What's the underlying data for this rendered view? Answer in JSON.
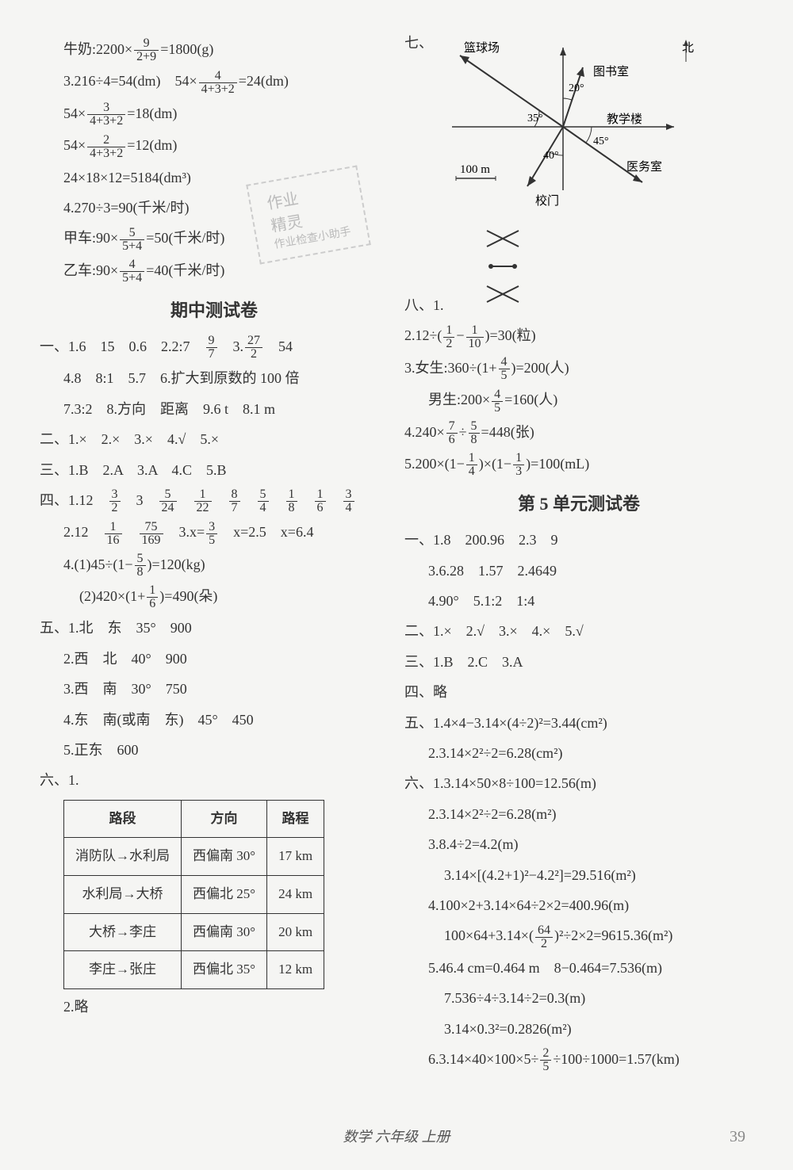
{
  "left": {
    "l1_a": "牛奶:2200×",
    "l1_f": {
      "n": "9",
      "d": "2+9"
    },
    "l1_b": "=1800(g)",
    "l2_a": "3.216÷4=54(dm)　54×",
    "l2_f": {
      "n": "4",
      "d": "4+3+2"
    },
    "l2_b": "=24(dm)",
    "l3_a": "54×",
    "l3_f": {
      "n": "3",
      "d": "4+3+2"
    },
    "l3_b": "=18(dm)",
    "l4_a": "54×",
    "l4_f": {
      "n": "2",
      "d": "4+3+2"
    },
    "l4_b": "=12(dm)",
    "l5": "24×18×12=5184(dm³)",
    "l6": "4.270÷3=90(千米/时)",
    "l7_a": "甲车:90×",
    "l7_f": {
      "n": "5",
      "d": "5+4"
    },
    "l7_b": "=50(千米/时)",
    "l8_a": "乙车:90×",
    "l8_f": {
      "n": "4",
      "d": "5+4"
    },
    "l8_b": "=40(千米/时)",
    "heading1": "期中测试卷",
    "s1_1a": "一、1.6　15　0.6　2.2:7　",
    "s1_1f1": {
      "n": "9",
      "d": "7"
    },
    "s1_1m": "　3.",
    "s1_1f2": {
      "n": "27",
      "d": "2"
    },
    "s1_1b": "　54",
    "s1_2": "4.8　8:1　5.7　6.扩大到原数的 100 倍",
    "s1_3": "7.3:2　8.方向　距离　9.6 t　8.1 m",
    "s2": "二、1.×　2.×　3.×　4.√　5.×",
    "s3": "三、1.B　2.A　3.A　4.C　5.B",
    "s4_1a": "四、1.12　",
    "s4_fr": [
      {
        "n": "3",
        "d": "2"
      },
      {
        "t": "　3　"
      },
      {
        "n": "5",
        "d": "24"
      },
      {
        "t": "　"
      },
      {
        "n": "1",
        "d": "22"
      },
      {
        "t": "　"
      },
      {
        "n": "8",
        "d": "7"
      },
      {
        "t": "　"
      },
      {
        "n": "5",
        "d": "4"
      },
      {
        "t": "　"
      },
      {
        "n": "1",
        "d": "8"
      },
      {
        "t": "　"
      },
      {
        "n": "1",
        "d": "6"
      },
      {
        "t": "　"
      },
      {
        "n": "3",
        "d": "4"
      }
    ],
    "s4_2a": "2.12　",
    "s4_2fr": [
      {
        "n": "1",
        "d": "16"
      },
      {
        "t": "　"
      },
      {
        "n": "75",
        "d": "169"
      },
      {
        "t": "　3.x="
      },
      {
        "n": "3",
        "d": "5"
      },
      {
        "t": "　x=2.5　x=6.4"
      }
    ],
    "s4_3a": "4.(1)45÷(1−",
    "s4_3f": {
      "n": "5",
      "d": "8"
    },
    "s4_3b": ")=120(kg)",
    "s4_4a": "(2)420×(1+",
    "s4_4f": {
      "n": "1",
      "d": "6"
    },
    "s4_4b": ")=490(朵)",
    "s5_1": "五、1.北　东　35°　900",
    "s5_2": "2.西　北　40°　900",
    "s5_3": "3.西　南　30°　750",
    "s5_4": "4.东　南(或南　东)　45°　450",
    "s5_5": "5.正东　600",
    "s6_label": "六、1.",
    "table": {
      "headers": [
        "路段",
        "方向",
        "路程"
      ],
      "rows": [
        [
          "消防队→水利局",
          "西偏南 30°",
          "17 km"
        ],
        [
          "水利局→大桥",
          "西偏北 25°",
          "24 km"
        ],
        [
          "大桥→李庄",
          "西偏南 30°",
          "20 km"
        ],
        [
          "李庄→张庄",
          "西偏北 35°",
          "12 km"
        ]
      ]
    },
    "s6_2": "2.略",
    "watermark1": "作业",
    "watermark2": "精灵",
    "watermark3": "作业检查小助手"
  },
  "right": {
    "s7_label": "七、",
    "compass": {
      "basketball": "篮球场",
      "north": "北",
      "library": "图书室",
      "teaching": "教学楼",
      "medical": "医务室",
      "gate": "校门",
      "scale": "100 m",
      "a20": "20°",
      "a35": "35°",
      "a45": "45°",
      "a40": "40°"
    },
    "s8_label": "八、1.",
    "r2_a": "2.12÷(",
    "r2_f1": {
      "n": "1",
      "d": "2"
    },
    "r2_m": "−",
    "r2_f2": {
      "n": "1",
      "d": "10"
    },
    "r2_b": ")=30(粒)",
    "r3_a": "3.女生:360÷(1+",
    "r3_f": {
      "n": "4",
      "d": "5"
    },
    "r3_b": ")=200(人)",
    "r4_a": "男生:200×",
    "r4_f": {
      "n": "4",
      "d": "5"
    },
    "r4_b": "=160(人)",
    "r5_a": "4.240×",
    "r5_f1": {
      "n": "7",
      "d": "6"
    },
    "r5_m": "÷",
    "r5_f2": {
      "n": "5",
      "d": "8"
    },
    "r5_b": "=448(张)",
    "r6_a": "5.200×(1−",
    "r6_f1": {
      "n": "1",
      "d": "4"
    },
    "r6_m": ")×(1−",
    "r6_f2": {
      "n": "1",
      "d": "3"
    },
    "r6_b": ")=100(mL)",
    "heading2": "第 5 单元测试卷",
    "u1": "一、1.8　200.96　2.3　9",
    "u1_2": "3.6.28　1.57　2.4649",
    "u1_3": "4.90°　5.1:2　1:4",
    "u2": "二、1.×　2.√　3.×　4.×　5.√",
    "u3": "三、1.B　2.C　3.A",
    "u4": "四、略",
    "u5_1": "五、1.4×4−3.14×(4÷2)²=3.44(cm²)",
    "u5_2": "2.3.14×2²÷2=6.28(cm²)",
    "u6_1": "六、1.3.14×50×8÷100=12.56(m)",
    "u6_2": "2.3.14×2²÷2=6.28(m²)",
    "u6_3": "3.8.4÷2=4.2(m)",
    "u6_3b": "3.14×[(4.2+1)²−4.2²]=29.516(m²)",
    "u6_4": "4.100×2+3.14×64÷2×2=400.96(m)",
    "u6_4b_a": "100×64+3.14×(",
    "u6_4b_f": {
      "n": "64",
      "d": "2"
    },
    "u6_4b_b": ")²÷2×2=9615.36(m²)",
    "u6_5": "5.46.4 cm=0.464 m　8−0.464=7.536(m)",
    "u6_5b": "7.536÷4÷3.14÷2=0.3(m)",
    "u6_5c": "3.14×0.3²=0.2826(m²)",
    "u6_6_a": "6.3.14×40×100×5÷",
    "u6_6_f": {
      "n": "2",
      "d": "5"
    },
    "u6_6_b": "÷100÷1000=1.57(km)"
  },
  "footer": "数学 六年级 上册",
  "pagenum": "39"
}
